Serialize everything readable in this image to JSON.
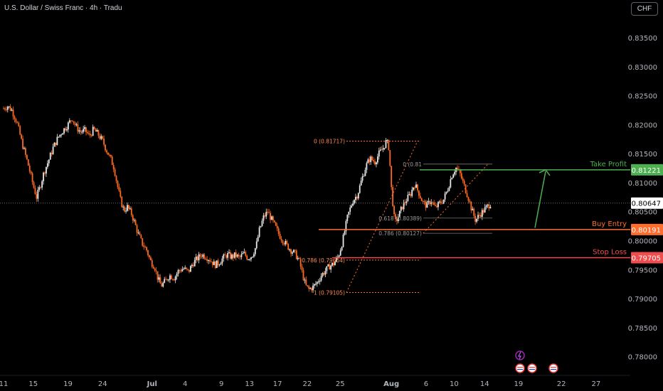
{
  "header": {
    "title": "U.S. Dollar / Swiss Franc · 4h · Tradu",
    "currency": "CHF"
  },
  "chart_data": {
    "type": "candlestick",
    "symbol": "USDCHF",
    "timeframe": "4h",
    "ylim": [
      0.7775,
      0.8415
    ],
    "y_ticks": [
      "0.83500",
      "0.83000",
      "0.82500",
      "0.82000",
      "0.81500",
      "0.81000",
      "0.80500",
      "0.80000",
      "0.79500",
      "0.79000",
      "0.78500",
      "0.78000"
    ],
    "x_ticks": [
      "11",
      "15",
      "19",
      "24",
      "Jul",
      "4",
      "9",
      "13",
      "17",
      "22",
      "25",
      "Aug",
      "6",
      "10",
      "14",
      "19",
      "22",
      "27"
    ],
    "last_price": "0.80647",
    "levels": [
      {
        "name": "Take Profit",
        "value": "0.81221",
        "color": "#4caf50"
      },
      {
        "name": "Buy Entry",
        "value": "0.80191",
        "color": "#ff6d2e"
      },
      {
        "name": "Stop Loss",
        "value": "0.79705",
        "color": "#ef4d4d"
      }
    ],
    "fib_low_swing": [
      {
        "label": "0 (0.81717)"
      },
      {
        "label": "0.786 (0.79664)"
      },
      {
        "label": "1 (0.79105)"
      }
    ],
    "fib_high_swing": [
      {
        "label": "0 (0.81"
      },
      {
        "label": "0.618 (0.80389)"
      },
      {
        "label": "0.786 (0.80127)"
      }
    ],
    "price_path": [
      [
        0,
        0.8228
      ],
      [
        0.5,
        0.8232
      ],
      [
        1,
        0.8225
      ],
      [
        1.6,
        0.8205
      ],
      [
        2.3,
        0.8165
      ],
      [
        3,
        0.813
      ],
      [
        3.6,
        0.8095
      ],
      [
        4,
        0.8075
      ],
      [
        4.4,
        0.8092
      ],
      [
        4.9,
        0.8118
      ],
      [
        5.5,
        0.814
      ],
      [
        6,
        0.816
      ],
      [
        6.6,
        0.8178
      ],
      [
        7.2,
        0.819
      ],
      [
        7.8,
        0.82
      ],
      [
        8.3,
        0.8212
      ],
      [
        8.8,
        0.8196
      ],
      [
        9.3,
        0.8188
      ],
      [
        9.9,
        0.819
      ],
      [
        10.4,
        0.818
      ],
      [
        10.9,
        0.8192
      ],
      [
        11.4,
        0.8184
      ],
      [
        12,
        0.8172
      ],
      [
        12.5,
        0.8155
      ],
      [
        13,
        0.814
      ],
      [
        13.4,
        0.8125
      ],
      [
        13.8,
        0.8095
      ],
      [
        14.2,
        0.8068
      ],
      [
        14.6,
        0.8052
      ],
      [
        15,
        0.8058
      ],
      [
        15.5,
        0.8046
      ],
      [
        15.9,
        0.803
      ],
      [
        16.3,
        0.8012
      ],
      [
        16.8,
        0.7995
      ],
      [
        17.3,
        0.7985
      ],
      [
        17.8,
        0.7965
      ],
      [
        18.3,
        0.7955
      ],
      [
        18.7,
        0.7935
      ],
      [
        19.1,
        0.7922
      ],
      [
        19.6,
        0.793
      ],
      [
        20.1,
        0.794
      ],
      [
        20.7,
        0.7936
      ],
      [
        21.2,
        0.7948
      ],
      [
        21.8,
        0.7952
      ],
      [
        22.4,
        0.7946
      ],
      [
        22.9,
        0.796
      ],
      [
        23.4,
        0.7968
      ],
      [
        24,
        0.7976
      ],
      [
        24.6,
        0.7972
      ],
      [
        25.1,
        0.7966
      ],
      [
        25.6,
        0.7958
      ],
      [
        26.1,
        0.7962
      ],
      [
        26.6,
        0.797
      ],
      [
        27.1,
        0.7976
      ],
      [
        27.6,
        0.7972
      ],
      [
        28.1,
        0.7975
      ],
      [
        28.6,
        0.797
      ],
      [
        29.1,
        0.7978
      ],
      [
        29.6,
        0.797
      ],
      [
        30.1,
        0.7974
      ],
      [
        30.6,
        0.799
      ],
      [
        31,
        0.8018
      ],
      [
        31.5,
        0.804
      ],
      [
        32,
        0.805
      ],
      [
        32.5,
        0.8036
      ],
      [
        33,
        0.8022
      ],
      [
        33.4,
        0.801
      ],
      [
        33.8,
        0.8002
      ],
      [
        34.3,
        0.7992
      ],
      [
        34.8,
        0.7984
      ],
      [
        35.3,
        0.7978
      ],
      [
        35.8,
        0.7966
      ],
      [
        36.2,
        0.7944
      ],
      [
        36.6,
        0.7922
      ],
      [
        37,
        0.7916
      ],
      [
        37.5,
        0.792
      ],
      [
        38,
        0.7928
      ],
      [
        38.5,
        0.794
      ],
      [
        39,
        0.7948
      ],
      [
        39.5,
        0.7956
      ],
      [
        40,
        0.796
      ],
      [
        40.6,
        0.7974
      ],
      [
        41.1,
        0.8
      ],
      [
        41.7,
        0.8042
      ],
      [
        42.3,
        0.8068
      ],
      [
        42.9,
        0.808
      ],
      [
        43.4,
        0.8105
      ],
      [
        43.9,
        0.8128
      ],
      [
        44.4,
        0.8142
      ],
      [
        45,
        0.8136
      ],
      [
        45.5,
        0.815
      ],
      [
        46,
        0.816
      ],
      [
        46.4,
        0.8172
      ],
      [
        46.7,
        0.816
      ],
      [
        47,
        0.809
      ],
      [
        47.4,
        0.803
      ],
      [
        47.8,
        0.804
      ],
      [
        48.3,
        0.8058
      ],
      [
        48.8,
        0.807
      ],
      [
        49.3,
        0.808
      ],
      [
        49.8,
        0.8098
      ],
      [
        50.3,
        0.8083
      ],
      [
        50.8,
        0.8066
      ],
      [
        51.3,
        0.806
      ],
      [
        51.8,
        0.807
      ],
      [
        52.3,
        0.8056
      ],
      [
        52.8,
        0.8064
      ],
      [
        53.3,
        0.807
      ],
      [
        53.8,
        0.8088
      ],
      [
        54.3,
        0.8112
      ],
      [
        54.8,
        0.8126
      ],
      [
        55.3,
        0.8116
      ],
      [
        55.8,
        0.8095
      ],
      [
        56.3,
        0.8075
      ],
      [
        56.7,
        0.8055
      ],
      [
        57.2,
        0.8035
      ],
      [
        57.7,
        0.8045
      ],
      [
        58.2,
        0.8052
      ],
      [
        58.7,
        0.806
      ],
      [
        59.1,
        0.8065
      ]
    ]
  }
}
